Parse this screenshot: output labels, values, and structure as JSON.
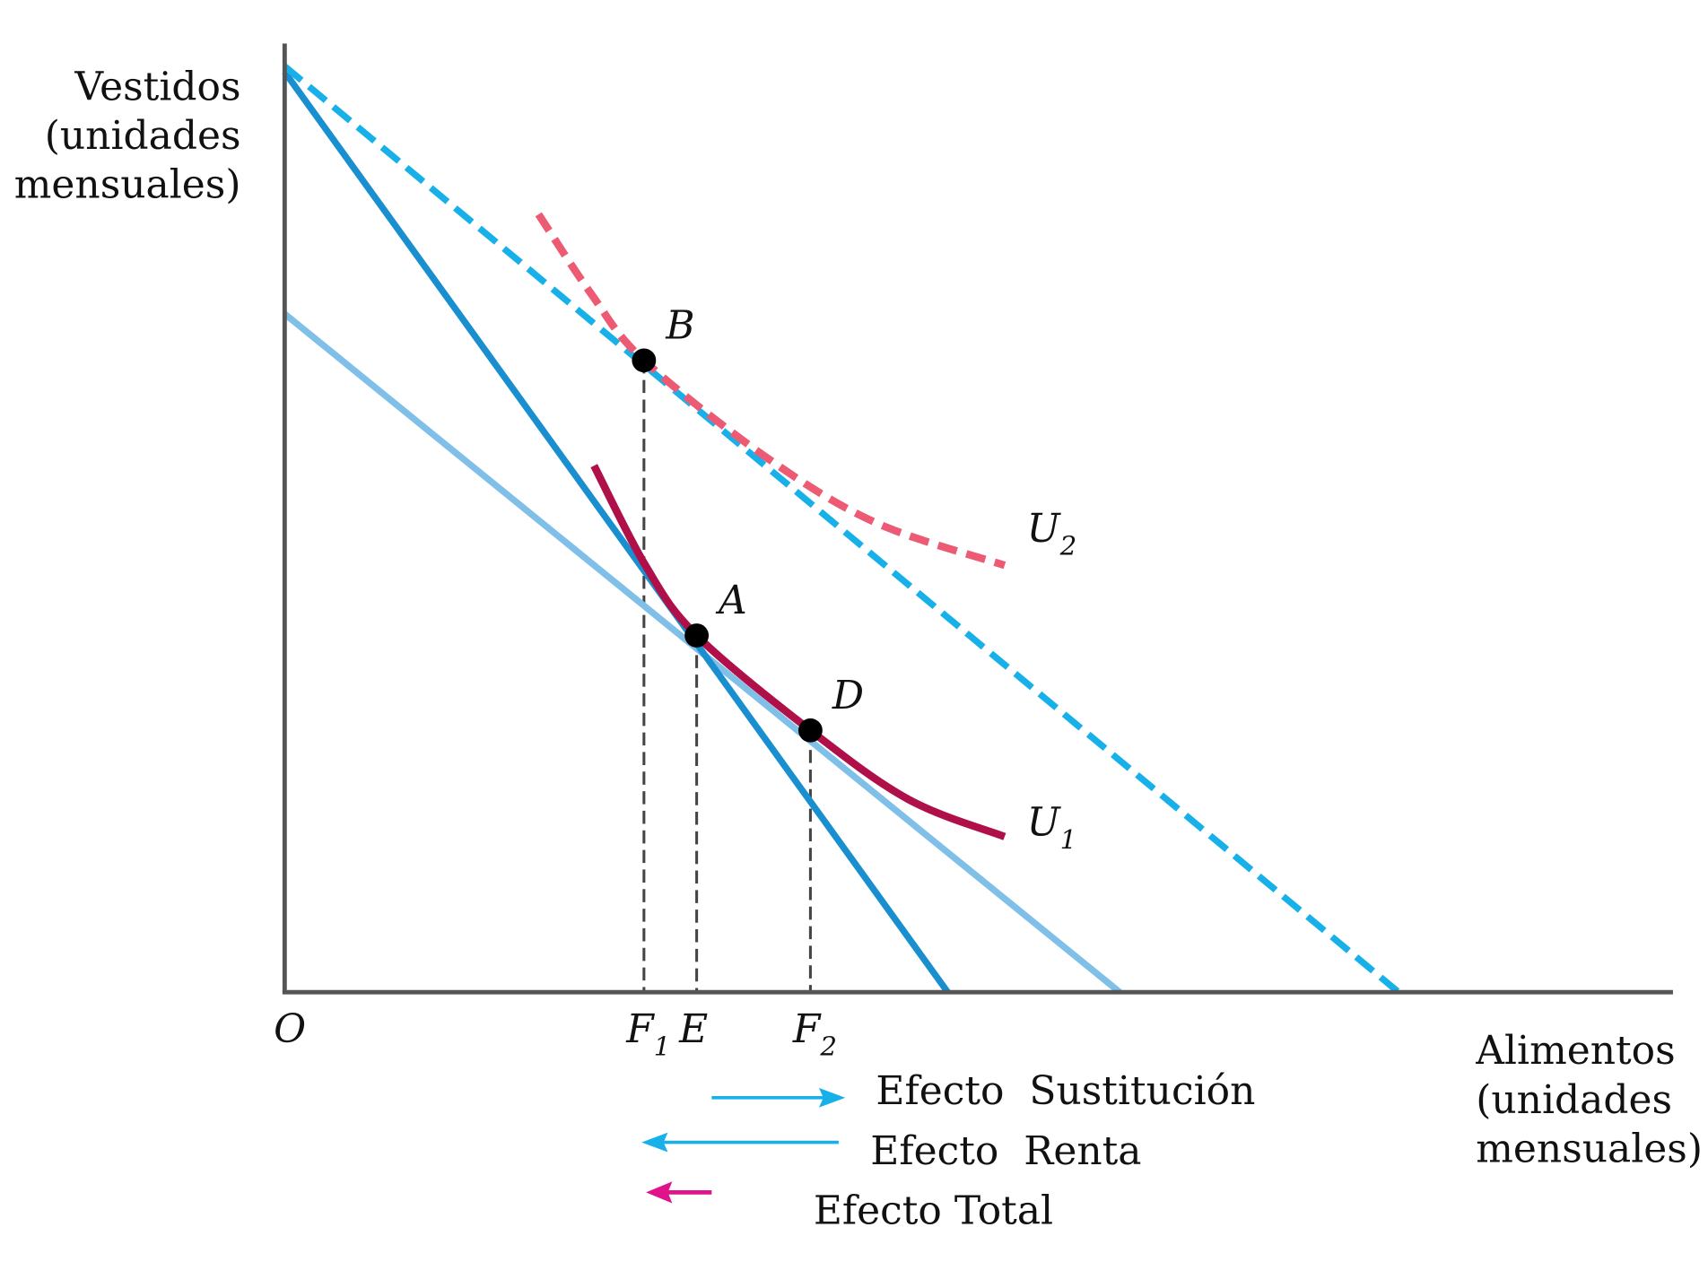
{
  "axes": {
    "y_label": [
      "Vestidos",
      "(unidades",
      "mensuales)"
    ],
    "x_label": [
      "Alimentos",
      "(unidades",
      "mensuales)"
    ],
    "origin": "O"
  },
  "chart_data": {
    "type": "line",
    "title": "",
    "xlabel": "Alimentos (unidades mensuales)",
    "ylabel": "Vestidos (unidades mensuales)",
    "xlim": [
      0,
      100
    ],
    "ylim": [
      0,
      100
    ],
    "grid": false,
    "series": [
      {
        "name": "budget-line-original",
        "style": "solid",
        "color": "#1a8fd0",
        "points": [
          [
            0,
            97
          ],
          [
            47.8,
            0
          ]
        ]
      },
      {
        "name": "budget-line-compensated",
        "style": "solid",
        "color": "#7fbfe8",
        "points": [
          [
            0,
            71.5
          ],
          [
            60.2,
            0
          ]
        ]
      },
      {
        "name": "budget-line-new",
        "style": "dashed",
        "color": "#18b0e8",
        "points": [
          [
            0,
            97.6
          ],
          [
            80.3,
            0
          ]
        ]
      },
      {
        "name": "U2",
        "style": "dashed",
        "color": "#ec5b73",
        "points": [
          [
            18.3,
            82.0
          ],
          [
            22.1,
            73.6
          ],
          [
            25.9,
            66.6
          ],
          [
            34.7,
            56.4
          ],
          [
            42.6,
            49.5
          ],
          [
            51.9,
            45.0
          ]
        ]
      },
      {
        "name": "U1",
        "style": "solid",
        "color": "#b0104a",
        "points": [
          [
            22.3,
            55.5
          ],
          [
            26.0,
            45.0
          ],
          [
            29.7,
            37.6
          ],
          [
            37.9,
            27.6
          ],
          [
            45.0,
            20.3
          ],
          [
            51.9,
            16.4
          ]
        ]
      }
    ],
    "curve_labels": [
      {
        "text": "U",
        "sub": "2",
        "x": 53.5,
        "y": 47.5
      },
      {
        "text": "U",
        "sub": "1",
        "x": 53.5,
        "y": 16.5
      }
    ],
    "points": [
      {
        "label": "B",
        "x": 25.9,
        "y": 66.6
      },
      {
        "label": "A",
        "x": 29.7,
        "y": 37.6
      },
      {
        "label": "D",
        "x": 37.9,
        "y": 27.6
      }
    ],
    "x_ticks": [
      {
        "text": "F",
        "sub": "1",
        "x": 25.9
      },
      {
        "text": "E",
        "sub": "",
        "x": 29.7
      },
      {
        "text": "F",
        "sub": "2",
        "x": 37.9
      }
    ]
  },
  "legend": [
    {
      "label": "Efecto  Sustitución",
      "color": "#18b0e8",
      "direction": "right"
    },
    {
      "label": "Efecto  Renta",
      "color": "#18b0e8",
      "direction": "left"
    },
    {
      "label": "Efecto Total",
      "color": "#e0148a",
      "direction": "left"
    }
  ]
}
